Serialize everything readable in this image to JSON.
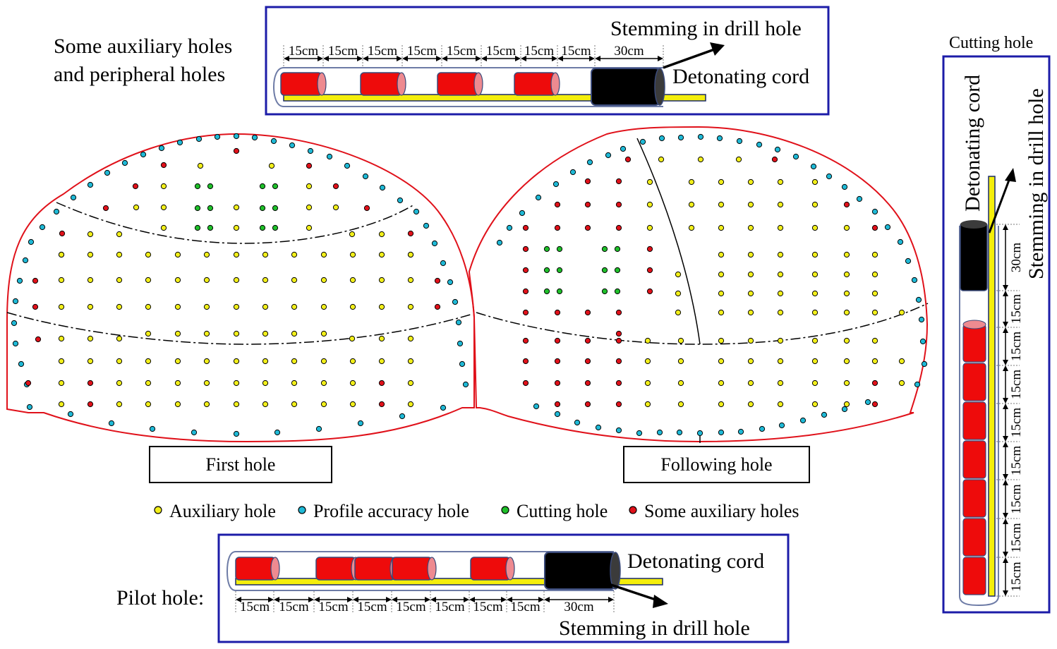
{
  "colors": {
    "auxiliary": "#f2ef1a",
    "profile": "#1fb9d6",
    "cutting": "#1fbf2a",
    "some_auxiliary": "#e0111a",
    "tunnel_outline": "#e0111a",
    "frame": "#1c1ca8",
    "charge": "#ee0b0b",
    "charge_cap": "#ee8a90",
    "stemming": "#000000",
    "cord": "#f4ee0c"
  },
  "top_diagram": {
    "caption": "Some auxiliary holes\nand peripheral holes",
    "stemming_label": "Stemming in drill hole",
    "cord_label": "Detonating cord",
    "segments": [
      "15cm",
      "15cm",
      "15cm",
      "15cm",
      "15cm",
      "15cm",
      "15cm",
      "15cm",
      "30cm"
    ]
  },
  "right_diagram": {
    "title": "Cutting hole",
    "cord_label": "Detonating cord",
    "stemming_label": "Stemming in drill hole",
    "segments": [
      "30cm",
      "15cm",
      "15cm",
      "15cm",
      "15cm",
      "15cm",
      "15cm",
      "15cm",
      "15cm"
    ]
  },
  "bottom_diagram": {
    "caption": "Pilot hole:",
    "cord_label": "Detonating cord",
    "stemming_label": "Stemming in drill hole",
    "segments": [
      "15cm",
      "15cm",
      "15cm",
      "15cm",
      "15cm",
      "15cm",
      "15cm",
      "15cm",
      "30cm"
    ]
  },
  "faces": {
    "first_label": "First hole",
    "following_label": "Following hole"
  },
  "legend": [
    {
      "label": "Auxiliary hole",
      "color_key": "auxiliary"
    },
    {
      "label": "Profile accuracy hole",
      "color_key": "profile"
    },
    {
      "label": "Cutting hole",
      "color_key": "cutting"
    },
    {
      "label": "Some auxiliary holes",
      "color_key": "some_auxiliary"
    }
  ]
}
